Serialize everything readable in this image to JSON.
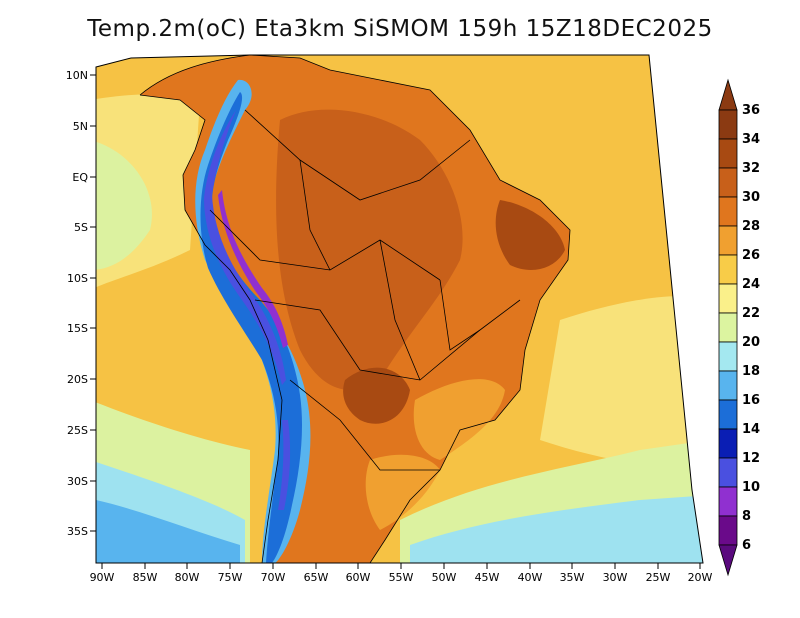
{
  "title": "Temp.2m(oC) Eta3km SiSMOM 159h 15Z18DEC2025",
  "lat_labels": [
    "10N",
    "5N",
    "EQ",
    "5S",
    "10S",
    "15S",
    "20S",
    "25S",
    "30S",
    "35S"
  ],
  "lon_labels": [
    "90W",
    "85W",
    "80W",
    "75W",
    "70W",
    "65W",
    "60W",
    "55W",
    "50W",
    "45W",
    "40W",
    "35W",
    "30W",
    "25W",
    "20W"
  ],
  "colorbar": {
    "labels": [
      "36",
      "34",
      "32",
      "30",
      "28",
      "26",
      "24",
      "22",
      "20",
      "18",
      "16",
      "14",
      "12",
      "10",
      "8",
      "6"
    ],
    "colors": [
      "#8b3a12",
      "#a84a12",
      "#c8601a",
      "#e0761e",
      "#f0a030",
      "#f8cc48",
      "#faf08a",
      "#dcf4a0",
      "#a4e8f0",
      "#58b4ee",
      "#1c6ed8",
      "#0a1eb4",
      "#4a50e0",
      "#9030d0",
      "#6a0a8a",
      "#5a0a7e"
    ]
  },
  "map_colors": {
    "ocean_warm": "#f6c244",
    "ocean_mid": "#f8e27a",
    "ocean_cool": "#dcf2a0",
    "ocean_cold": "#9ee2f0",
    "ocean_colder": "#58b4ee",
    "land_hot": "#e0761e",
    "land_very_hot": "#c8601a",
    "land_extreme": "#a84a12",
    "andes_cold": "#4a50e0",
    "andes_very_cold": "#9030d0"
  }
}
